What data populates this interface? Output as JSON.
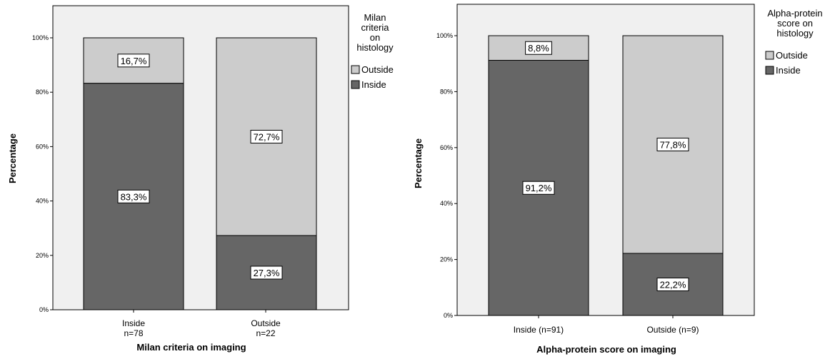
{
  "chart_data": [
    {
      "type": "bar",
      "stacked": true,
      "categories": [
        "Inside\nn=78",
        "Outside\nn=22"
      ],
      "series": [
        {
          "name": "Inside",
          "color": "#666666",
          "values": [
            83.3,
            27.3
          ],
          "labels": [
            "83,3%",
            "27,3%"
          ]
        },
        {
          "name": "Outside",
          "color": "#cccccc",
          "values": [
            16.7,
            72.7
          ],
          "labels": [
            "16,7%",
            "72,7%"
          ]
        }
      ],
      "xlabel": "Milan criteria on imaging",
      "ylabel": "Percentage",
      "ylim": [
        0,
        100
      ],
      "yticks": [
        0,
        20,
        40,
        60,
        80,
        100
      ],
      "ytick_labels": [
        "0%",
        "20%",
        "40%",
        "60%",
        "80%",
        "100%"
      ],
      "legend_title": "Milan criteria on histology",
      "legend_placement": "right",
      "legend_order": [
        "Outside",
        "Inside"
      ],
      "plot_background": "#f0f0f0",
      "grid": false
    },
    {
      "type": "bar",
      "stacked": true,
      "categories": [
        "Inside (n=91)",
        "Outside (n=9)"
      ],
      "series": [
        {
          "name": "Inside",
          "color": "#666666",
          "values": [
            91.2,
            22.2
          ],
          "labels": [
            "91,2%",
            "22,2%"
          ]
        },
        {
          "name": "Outside",
          "color": "#cccccc",
          "values": [
            8.8,
            77.8
          ],
          "labels": [
            "8,8%",
            "77,8%"
          ]
        }
      ],
      "xlabel": "Alpha-protein score on imaging",
      "ylabel": "Percentage",
      "ylim": [
        0,
        100
      ],
      "yticks": [
        0,
        20,
        40,
        60,
        80,
        100
      ],
      "ytick_labels": [
        "0%",
        "20%",
        "40%",
        "60%",
        "80%",
        "100%"
      ],
      "legend_title": "Alpha-protein score on histology",
      "legend_placement": "right",
      "legend_order": [
        "Outside",
        "Inside"
      ],
      "plot_background": "#f0f0f0",
      "grid": false
    }
  ]
}
